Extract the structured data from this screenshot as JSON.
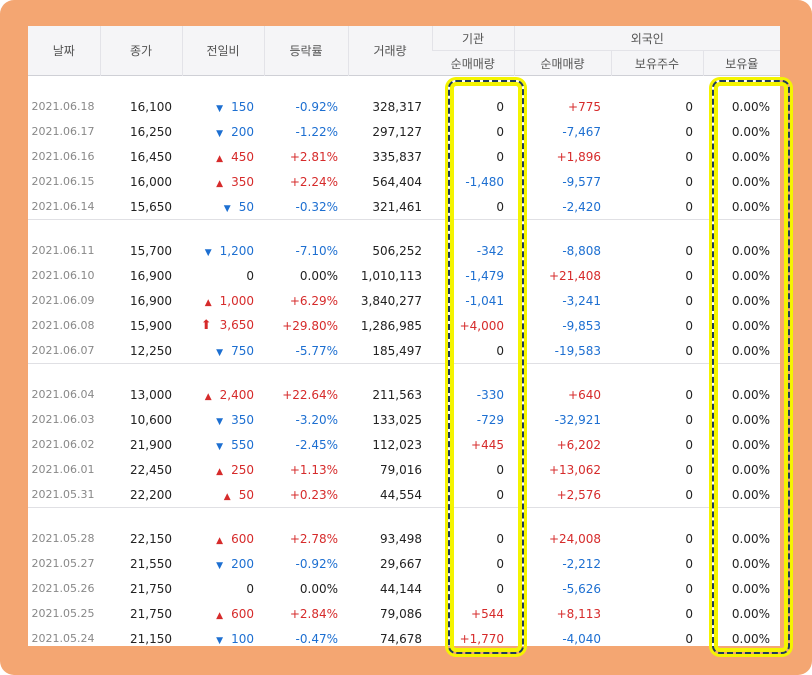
{
  "header": {
    "date": "날짜",
    "close": "종가",
    "change": "전일비",
    "rate": "등락률",
    "volume": "거래량",
    "institution": "기관",
    "foreign": "외국인",
    "inst_net": "순매매량",
    "foreign_net": "순매매량",
    "foreign_hold": "보유주수",
    "foreign_ratio": "보유율"
  },
  "colors": {
    "up": "#d62b2b",
    "down": "#1d6fd1",
    "frame": "#f4a672",
    "highlight": "#f4f400"
  },
  "groups": [
    {
      "rows": [
        {
          "date": "2021.06.18",
          "close": "16,100",
          "dir": "down",
          "change": "150",
          "rate": "-0.92%",
          "volume": "328,317",
          "inst": "0",
          "foreign": "+775",
          "hold": "0",
          "ratio": "0.00%"
        },
        {
          "date": "2021.06.17",
          "close": "16,250",
          "dir": "down",
          "change": "200",
          "rate": "-1.22%",
          "volume": "297,127",
          "inst": "0",
          "foreign": "-7,467",
          "hold": "0",
          "ratio": "0.00%"
        },
        {
          "date": "2021.06.16",
          "close": "16,450",
          "dir": "up",
          "change": "450",
          "rate": "+2.81%",
          "volume": "335,837",
          "inst": "0",
          "foreign": "+1,896",
          "hold": "0",
          "ratio": "0.00%"
        },
        {
          "date": "2021.06.15",
          "close": "16,000",
          "dir": "up",
          "change": "350",
          "rate": "+2.24%",
          "volume": "564,404",
          "inst": "-1,480",
          "foreign": "-9,577",
          "hold": "0",
          "ratio": "0.00%"
        },
        {
          "date": "2021.06.14",
          "close": "15,650",
          "dir": "down",
          "change": "50",
          "rate": "-0.32%",
          "volume": "321,461",
          "inst": "0",
          "foreign": "-2,420",
          "hold": "0",
          "ratio": "0.00%"
        }
      ]
    },
    {
      "rows": [
        {
          "date": "2021.06.11",
          "close": "15,700",
          "dir": "down",
          "change": "1,200",
          "rate": "-7.10%",
          "volume": "506,252",
          "inst": "-342",
          "foreign": "-8,808",
          "hold": "0",
          "ratio": "0.00%"
        },
        {
          "date": "2021.06.10",
          "close": "16,900",
          "dir": "none",
          "change": "0",
          "rate": "0.00%",
          "volume": "1,010,113",
          "inst": "-1,479",
          "foreign": "+21,408",
          "hold": "0",
          "ratio": "0.00%"
        },
        {
          "date": "2021.06.09",
          "close": "16,900",
          "dir": "up",
          "change": "1,000",
          "rate": "+6.29%",
          "volume": "3,840,277",
          "inst": "-1,041",
          "foreign": "-3,241",
          "hold": "0",
          "ratio": "0.00%"
        },
        {
          "date": "2021.06.08",
          "close": "15,900",
          "dir": "limit",
          "change": "3,650",
          "rate": "+29.80%",
          "volume": "1,286,985",
          "inst": "+4,000",
          "foreign": "-9,853",
          "hold": "0",
          "ratio": "0.00%"
        },
        {
          "date": "2021.06.07",
          "close": "12,250",
          "dir": "down",
          "change": "750",
          "rate": "-5.77%",
          "volume": "185,497",
          "inst": "0",
          "foreign": "-19,583",
          "hold": "0",
          "ratio": "0.00%"
        }
      ]
    },
    {
      "rows": [
        {
          "date": "2021.06.04",
          "close": "13,000",
          "dir": "up",
          "change": "2,400",
          "rate": "+22.64%",
          "volume": "211,563",
          "inst": "-330",
          "foreign": "+640",
          "hold": "0",
          "ratio": "0.00%"
        },
        {
          "date": "2021.06.03",
          "close": "10,600",
          "dir": "down",
          "change": "350",
          "rate": "-3.20%",
          "volume": "133,025",
          "inst": "-729",
          "foreign": "-32,921",
          "hold": "0",
          "ratio": "0.00%"
        },
        {
          "date": "2021.06.02",
          "close": "21,900",
          "dir": "down",
          "change": "550",
          "rate": "-2.45%",
          "volume": "112,023",
          "inst": "+445",
          "foreign": "+6,202",
          "hold": "0",
          "ratio": "0.00%"
        },
        {
          "date": "2021.06.01",
          "close": "22,450",
          "dir": "up",
          "change": "250",
          "rate": "+1.13%",
          "volume": "79,016",
          "inst": "0",
          "foreign": "+13,062",
          "hold": "0",
          "ratio": "0.00%"
        },
        {
          "date": "2021.05.31",
          "close": "22,200",
          "dir": "up",
          "change": "50",
          "rate": "+0.23%",
          "volume": "44,554",
          "inst": "0",
          "foreign": "+2,576",
          "hold": "0",
          "ratio": "0.00%"
        }
      ]
    },
    {
      "rows": [
        {
          "date": "2021.05.28",
          "close": "22,150",
          "dir": "up",
          "change": "600",
          "rate": "+2.78%",
          "volume": "93,498",
          "inst": "0",
          "foreign": "+24,008",
          "hold": "0",
          "ratio": "0.00%"
        },
        {
          "date": "2021.05.27",
          "close": "21,550",
          "dir": "down",
          "change": "200",
          "rate": "-0.92%",
          "volume": "29,667",
          "inst": "0",
          "foreign": "-2,212",
          "hold": "0",
          "ratio": "0.00%"
        },
        {
          "date": "2021.05.26",
          "close": "21,750",
          "dir": "none",
          "change": "0",
          "rate": "0.00%",
          "volume": "44,144",
          "inst": "0",
          "foreign": "-5,626",
          "hold": "0",
          "ratio": "0.00%"
        },
        {
          "date": "2021.05.25",
          "close": "21,750",
          "dir": "up",
          "change": "600",
          "rate": "+2.84%",
          "volume": "79,086",
          "inst": "+544",
          "foreign": "+8,113",
          "hold": "0",
          "ratio": "0.00%"
        },
        {
          "date": "2021.05.24",
          "close": "21,150",
          "dir": "down",
          "change": "100",
          "rate": "-0.47%",
          "volume": "74,678",
          "inst": "+1,770",
          "foreign": "-4,040",
          "hold": "0",
          "ratio": "0.00%"
        }
      ]
    }
  ]
}
